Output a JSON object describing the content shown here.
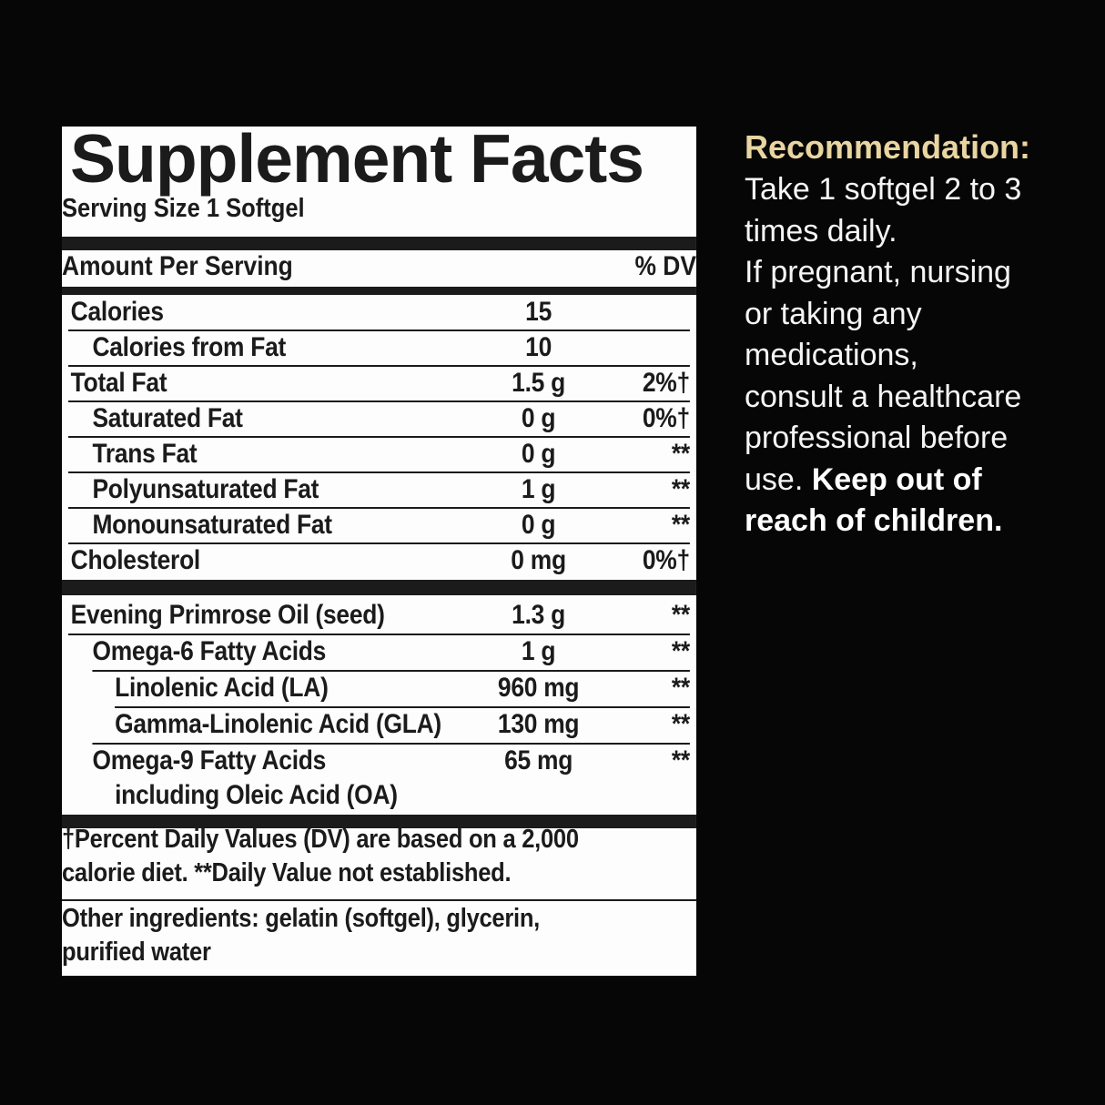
{
  "colors": {
    "background": "#060606",
    "panel_bg": "#fdfdfd",
    "ink": "#1b1b1b",
    "recommendation_heading": "#e9d5a1",
    "recommendation_body": "#f5f5f5"
  },
  "panel": {
    "title": "Supplement Facts",
    "serving_size": "Serving Size 1 Softgel",
    "header": {
      "amount_per_serving": "Amount Per Serving",
      "percent_dv": "% DV"
    },
    "rows1": [
      {
        "label": "Calories",
        "amount": "15",
        "dv": ""
      },
      {
        "label": "Calories from Fat",
        "amount": "10",
        "dv": ""
      },
      {
        "label": "Total Fat",
        "amount": "1.5 g",
        "dv": "2%†"
      },
      {
        "label": "Saturated Fat",
        "amount": "0 g",
        "dv": "0%†"
      },
      {
        "label": "Trans Fat",
        "amount": "0 g",
        "dv": "**"
      },
      {
        "label": "Polyunsaturated Fat",
        "amount": "1 g",
        "dv": "**"
      },
      {
        "label": "Monounsaturated Fat",
        "amount": "0 g",
        "dv": "**"
      },
      {
        "label": "Cholesterol",
        "amount": "0 mg",
        "dv": "0%†"
      }
    ],
    "rows2": [
      {
        "label": "Evening Primrose Oil (seed)",
        "amount": "1.3 g",
        "dv": "**"
      },
      {
        "label": "Omega-6 Fatty Acids",
        "amount": "1 g",
        "dv": "**"
      },
      {
        "label": "Linolenic Acid (LA)",
        "amount": "960 mg",
        "dv": "**"
      },
      {
        "label": "Gamma-Linolenic Acid (GLA)",
        "amount": "130 mg",
        "dv": "**"
      },
      {
        "label": "Omega-9 Fatty Acids",
        "amount": "65 mg",
        "dv": "**",
        "sub": "including Oleic Acid (OA)"
      }
    ],
    "footnote": "†Percent Daily Values (DV) are based on a 2,000\ncalorie diet. **Daily Value not established.",
    "other_ingredients": "Other ingredients: gelatin (softgel), glycerin,\npurified water"
  },
  "recommendation": {
    "heading": "Recommendation:",
    "body_regular": "Take 1 softgel 2 to 3\ntimes daily.\nIf pregnant, nursing\nor taking any\nmedications,\nconsult a healthcare\nprofessional before\nuse. ",
    "body_bold": "Keep out of\nreach of children."
  }
}
